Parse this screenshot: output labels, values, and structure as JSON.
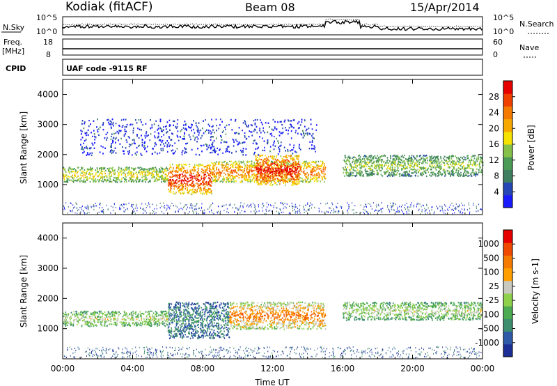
{
  "header": {
    "radar": "Kodiak (fitACF)",
    "beam": "Beam 08",
    "date": "15/Apr/2014"
  },
  "strip": {
    "nsky_label": "N.Sky",
    "nsearch_label": "N.Search",
    "nsky_ticks": [
      "10^5",
      "10^0"
    ],
    "nsearch_ticks": [
      "10^5",
      "10^0"
    ],
    "freq_label": "Freq.",
    "freq_unit": "[MHz]",
    "freq_ticks": [
      "18",
      "8"
    ],
    "nave_label": "Nave",
    "nave_ticks": [
      "60",
      "0"
    ],
    "cpid_label": "CPID",
    "cpid_text": "UAF code -9115 RF"
  },
  "colors": {
    "power": [
      "#1a1aff",
      "#2546b4",
      "#3f7f5f",
      "#4b9a55",
      "#86c24a",
      "#f5e200",
      "#f6a800",
      "#f57b00",
      "#f04000",
      "#e60000"
    ],
    "velocity": [
      "#1c2f96",
      "#2f5aa8",
      "#3d8d6f",
      "#4caa52",
      "#8fd14a",
      "#c9c9c0",
      "#ffa000",
      "#f57b00",
      "#ef4a00",
      "#e60000"
    ]
  },
  "chart_data": [
    {
      "type": "heatmap",
      "name": "power",
      "ylabel": "Slant Range [km]",
      "xlabel": "",
      "x_ticks": [
        "00:00",
        "04:00",
        "08:00",
        "12:00",
        "16:00",
        "20:00",
        "00:00"
      ],
      "y_ticks": [
        "1000",
        "2000",
        "3000",
        "4000"
      ],
      "ylim": [
        0,
        4500
      ],
      "xlim_hours": [
        0,
        24
      ],
      "colorbar_label": "Power [dB]",
      "colorbar_ticks": [
        "28",
        "24",
        "20",
        "16",
        "12",
        "8",
        "4"
      ],
      "regions": [
        {
          "x": [
            0,
            6
          ],
          "y": [
            1100,
            1600
          ],
          "level": 0.55
        },
        {
          "x": [
            6,
            8.5
          ],
          "y": [
            700,
            1700
          ],
          "level": 0.9
        },
        {
          "x": [
            8.5,
            15
          ],
          "y": [
            1100,
            1800
          ],
          "level": 0.75
        },
        {
          "x": [
            11,
            13.5
          ],
          "y": [
            1000,
            2000
          ],
          "level": 0.95
        },
        {
          "x": [
            16,
            24
          ],
          "y": [
            1300,
            2000
          ],
          "level": 0.45
        },
        {
          "x": [
            1,
            14.5
          ],
          "y": [
            2000,
            3200
          ],
          "level": 0.1
        }
      ]
    },
    {
      "type": "heatmap",
      "name": "velocity",
      "ylabel": "Slant Range [km]",
      "xlabel": "Time UT",
      "x_ticks": [
        "00:00",
        "04:00",
        "08:00",
        "12:00",
        "16:00",
        "20:00",
        "00:00"
      ],
      "y_ticks": [
        "1000",
        "2000",
        "3000",
        "4000"
      ],
      "ylim": [
        0,
        4500
      ],
      "xlim_hours": [
        0,
        24
      ],
      "colorbar_label": "Velocity [m s-1]",
      "colorbar_ticks": [
        "1000",
        "500",
        "100",
        "25",
        "-25",
        "-100",
        "-500",
        "-1000"
      ],
      "regions": [
        {
          "x": [
            0,
            6
          ],
          "y": [
            1100,
            1600
          ],
          "level": 0.5
        },
        {
          "x": [
            6,
            9.5
          ],
          "y": [
            700,
            1900
          ],
          "level": 0.25
        },
        {
          "x": [
            9.5,
            15
          ],
          "y": [
            1000,
            1900
          ],
          "level": 0.75
        },
        {
          "x": [
            16,
            24
          ],
          "y": [
            1300,
            1900
          ],
          "level": 0.5
        }
      ]
    }
  ]
}
